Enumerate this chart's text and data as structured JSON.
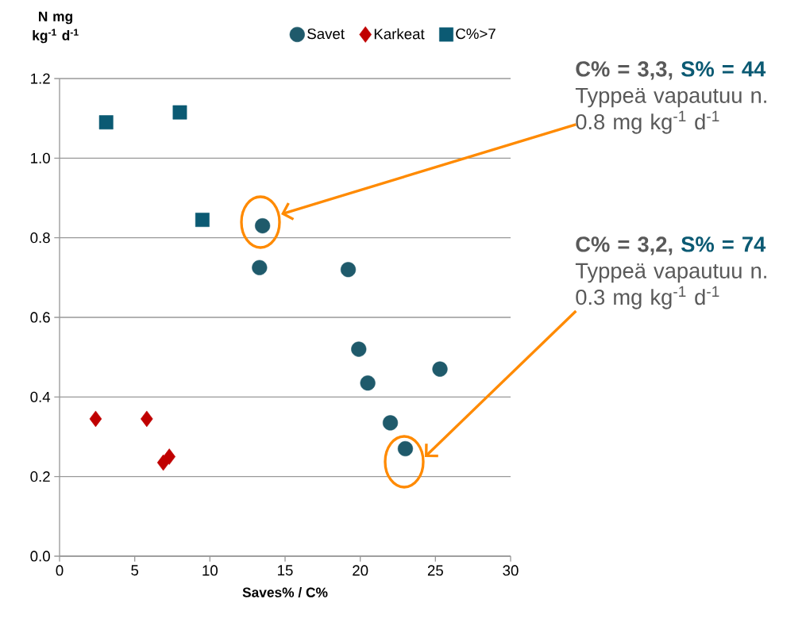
{
  "chart_data": {
    "type": "scatter",
    "xlabel": "Saves% / C%",
    "ylabel": "N mg kg$^{-1}$ d$^{-1}$",
    "xlim": [
      0,
      30
    ],
    "xticks": [
      0,
      5,
      10,
      15,
      20,
      25,
      30
    ],
    "ylim": [
      0,
      1.2
    ],
    "yticks": [
      {
        "value": 0,
        "label": "0.0"
      },
      {
        "value": 0.2,
        "label": "0.2"
      },
      {
        "value": 0.4,
        "label": "0.4"
      },
      {
        "value": 0.6,
        "label": "0.6"
      },
      {
        "value": 0.8,
        "label": "0.8"
      },
      {
        "value": 1.0,
        "label": "1.0"
      },
      {
        "value": 1.2,
        "label": "1.2"
      }
    ],
    "grid": "y",
    "legend": "top",
    "series": [
      {
        "name": "Savet",
        "color": "#1f5a6b",
        "marker": "circle",
        "x": [
          13.5,
          13.3,
          19.2,
          19.9,
          20.5,
          25.3,
          22.0,
          23.0
        ],
        "values": [
          0.83,
          0.725,
          0.72,
          0.52,
          0.435,
          0.47,
          0.335,
          0.27
        ]
      },
      {
        "name": "Karkeat",
        "color": "#c00000",
        "marker": "diamond",
        "x": [
          2.4,
          5.8,
          6.9,
          7.3
        ],
        "values": [
          0.345,
          0.345,
          0.235,
          0.25
        ]
      },
      {
        "name": "C%>7",
        "color": "#0b5a73",
        "marker": "square",
        "x": [
          3.1,
          8.0,
          9.5
        ],
        "values": [
          1.09,
          1.115,
          0.845
        ]
      }
    ],
    "annotations": [
      "C% = 3,3,",
      "S% = 44",
      "Typpeä vapautuu n. 0.8 mg kg$^{-1}$ d$^{-1}$",
      "C% = 3,2,",
      "S% = 74",
      "Typpeä vapautuu n. 0.3 mg kg$^{-1}$ d$^{-1}$"
    ]
  }
}
